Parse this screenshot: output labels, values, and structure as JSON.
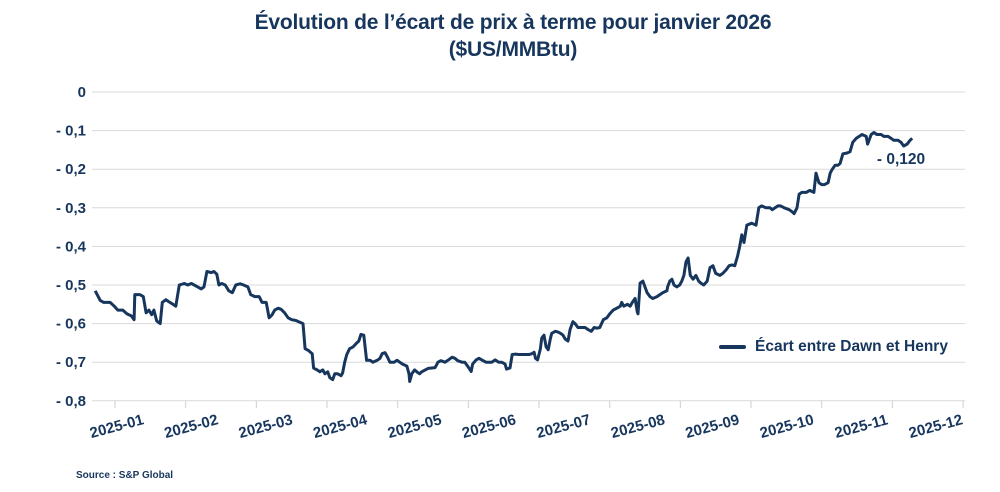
{
  "title": {
    "line1": "Évolution de l’écart de prix à terme pour janvier 2026",
    "line2": "($US/MMBtu)"
  },
  "legend": {
    "label": "Écart entre Dawn et Henry"
  },
  "annotation": {
    "label": "- 0,120"
  },
  "source": {
    "label": "Source : S&P Global"
  },
  "colors": {
    "navy": "#17365d",
    "grid": "#d9d9d9",
    "tick": "#cfcfcf",
    "background": "#ffffff"
  },
  "chart_data": {
    "type": "line",
    "title": "Évolution de l'écart de prix à terme pour janvier 2026 ($US/MMBtu)",
    "xlabel": "",
    "ylabel": "",
    "ylim": [
      -0.8,
      0
    ],
    "grid": "horizontal",
    "legend_position": "right-middle",
    "y_ticks": [
      0,
      -0.1,
      -0.2,
      -0.3,
      -0.4,
      -0.5,
      -0.6,
      -0.7,
      -0.8
    ],
    "y_tick_labels": [
      "0",
      "- 0,1",
      "- 0,2",
      "- 0,3",
      "- 0,4",
      "- 0,5",
      "- 0,6",
      "- 0,7",
      "- 0,8"
    ],
    "x_tick_labels": [
      "2025-01",
      "2025-02",
      "2025-03",
      "2025-04",
      "2025-05",
      "2025-06",
      "2025-07",
      "2025-08",
      "2025-09",
      "2025-10",
      "2025-11",
      "2025-12"
    ],
    "x_unit": "months offset from 2025-01 tick",
    "last_value": -0.12,
    "last_value_label": "- 0,120",
    "series": [
      {
        "name": "Écart entre Dawn et Henry",
        "points": [
          [
            -0.28,
            -0.515
          ],
          [
            -0.21,
            -0.54
          ],
          [
            -0.16,
            -0.545
          ],
          [
            -0.07,
            -0.545
          ],
          [
            -0.01,
            -0.555
          ],
          [
            0.04,
            -0.565
          ],
          [
            0.11,
            -0.565
          ],
          [
            0.17,
            -0.575
          ],
          [
            0.23,
            -0.58
          ],
          [
            0.27,
            -0.59
          ],
          [
            0.28,
            -0.525
          ],
          [
            0.35,
            -0.525
          ],
          [
            0.4,
            -0.53
          ],
          [
            0.44,
            -0.572
          ],
          [
            0.48,
            -0.565
          ],
          [
            0.52,
            -0.577
          ],
          [
            0.55,
            -0.565
          ],
          [
            0.59,
            -0.593
          ],
          [
            0.64,
            -0.6
          ],
          [
            0.67,
            -0.545
          ],
          [
            0.72,
            -0.538
          ],
          [
            0.76,
            -0.543
          ],
          [
            0.82,
            -0.55
          ],
          [
            0.86,
            -0.555
          ],
          [
            0.91,
            -0.5
          ],
          [
            0.98,
            -0.496
          ],
          [
            1.03,
            -0.5
          ],
          [
            1.08,
            -0.496
          ],
          [
            1.12,
            -0.5
          ],
          [
            1.17,
            -0.505
          ],
          [
            1.22,
            -0.51
          ],
          [
            1.26,
            -0.505
          ],
          [
            1.3,
            -0.465
          ],
          [
            1.36,
            -0.468
          ],
          [
            1.4,
            -0.465
          ],
          [
            1.44,
            -0.472
          ],
          [
            1.47,
            -0.5
          ],
          [
            1.51,
            -0.496
          ],
          [
            1.56,
            -0.5
          ],
          [
            1.61,
            -0.515
          ],
          [
            1.66,
            -0.52
          ],
          [
            1.71,
            -0.5
          ],
          [
            1.77,
            -0.497
          ],
          [
            1.82,
            -0.5
          ],
          [
            1.88,
            -0.505
          ],
          [
            1.92,
            -0.525
          ],
          [
            1.98,
            -0.53
          ],
          [
            2.04,
            -0.53
          ],
          [
            2.08,
            -0.545
          ],
          [
            2.14,
            -0.545
          ],
          [
            2.18,
            -0.585
          ],
          [
            2.22,
            -0.578
          ],
          [
            2.26,
            -0.565
          ],
          [
            2.31,
            -0.56
          ],
          [
            2.35,
            -0.563
          ],
          [
            2.4,
            -0.572
          ],
          [
            2.45,
            -0.585
          ],
          [
            2.5,
            -0.59
          ],
          [
            2.56,
            -0.592
          ],
          [
            2.6,
            -0.595
          ],
          [
            2.66,
            -0.6
          ],
          [
            2.69,
            -0.665
          ],
          [
            2.74,
            -0.67
          ],
          [
            2.79,
            -0.678
          ],
          [
            2.81,
            -0.715
          ],
          [
            2.86,
            -0.72
          ],
          [
            2.9,
            -0.725
          ],
          [
            2.94,
            -0.72
          ],
          [
            2.97,
            -0.73
          ],
          [
            3.01,
            -0.725
          ],
          [
            3.04,
            -0.74
          ],
          [
            3.08,
            -0.745
          ],
          [
            3.11,
            -0.73
          ],
          [
            3.15,
            -0.73
          ],
          [
            3.2,
            -0.735
          ],
          [
            3.22,
            -0.728
          ],
          [
            3.25,
            -0.7
          ],
          [
            3.28,
            -0.68
          ],
          [
            3.32,
            -0.665
          ],
          [
            3.37,
            -0.66
          ],
          [
            3.41,
            -0.652
          ],
          [
            3.45,
            -0.645
          ],
          [
            3.48,
            -0.628
          ],
          [
            3.52,
            -0.63
          ],
          [
            3.56,
            -0.695
          ],
          [
            3.61,
            -0.695
          ],
          [
            3.65,
            -0.7
          ],
          [
            3.71,
            -0.695
          ],
          [
            3.75,
            -0.69
          ],
          [
            3.78,
            -0.678
          ],
          [
            3.82,
            -0.675
          ],
          [
            3.85,
            -0.685
          ],
          [
            3.89,
            -0.7
          ],
          [
            3.95,
            -0.7
          ],
          [
            3.99,
            -0.695
          ],
          [
            4.03,
            -0.7
          ],
          [
            4.07,
            -0.705
          ],
          [
            4.13,
            -0.71
          ],
          [
            4.16,
            -0.73
          ],
          [
            4.17,
            -0.75
          ],
          [
            4.2,
            -0.73
          ],
          [
            4.24,
            -0.72
          ],
          [
            4.27,
            -0.725
          ],
          [
            4.31,
            -0.73
          ],
          [
            4.34,
            -0.725
          ],
          [
            4.39,
            -0.72
          ],
          [
            4.43,
            -0.716
          ],
          [
            4.48,
            -0.715
          ],
          [
            4.53,
            -0.714
          ],
          [
            4.57,
            -0.7
          ],
          [
            4.61,
            -0.696
          ],
          [
            4.67,
            -0.7
          ],
          [
            4.71,
            -0.695
          ],
          [
            4.77,
            -0.687
          ],
          [
            4.81,
            -0.69
          ],
          [
            4.85,
            -0.696
          ],
          [
            4.91,
            -0.7
          ],
          [
            4.95,
            -0.7
          ],
          [
            4.99,
            -0.71
          ],
          [
            5.04,
            -0.724
          ],
          [
            5.06,
            -0.705
          ],
          [
            5.11,
            -0.694
          ],
          [
            5.15,
            -0.69
          ],
          [
            5.19,
            -0.694
          ],
          [
            5.25,
            -0.7
          ],
          [
            5.29,
            -0.7
          ],
          [
            5.33,
            -0.7
          ],
          [
            5.38,
            -0.694
          ],
          [
            5.43,
            -0.7
          ],
          [
            5.47,
            -0.7
          ],
          [
            5.52,
            -0.705
          ],
          [
            5.54,
            -0.718
          ],
          [
            5.59,
            -0.715
          ],
          [
            5.62,
            -0.68
          ],
          [
            5.67,
            -0.679
          ],
          [
            5.71,
            -0.68
          ],
          [
            5.77,
            -0.68
          ],
          [
            5.81,
            -0.68
          ],
          [
            5.86,
            -0.68
          ],
          [
            5.9,
            -0.678
          ],
          [
            5.93,
            -0.674
          ],
          [
            5.95,
            -0.69
          ],
          [
            5.98,
            -0.694
          ],
          [
            6.02,
            -0.665
          ],
          [
            6.03,
            -0.65
          ],
          [
            6.04,
            -0.637
          ],
          [
            6.07,
            -0.63
          ],
          [
            6.1,
            -0.66
          ],
          [
            6.13,
            -0.668
          ],
          [
            6.16,
            -0.64
          ],
          [
            6.18,
            -0.625
          ],
          [
            6.23,
            -0.62
          ],
          [
            6.27,
            -0.622
          ],
          [
            6.31,
            -0.626
          ],
          [
            6.34,
            -0.63
          ],
          [
            6.37,
            -0.64
          ],
          [
            6.41,
            -0.645
          ],
          [
            6.44,
            -0.615
          ],
          [
            6.48,
            -0.595
          ],
          [
            6.51,
            -0.6
          ],
          [
            6.55,
            -0.61
          ],
          [
            6.61,
            -0.61
          ],
          [
            6.65,
            -0.61
          ],
          [
            6.69,
            -0.615
          ],
          [
            6.74,
            -0.62
          ],
          [
            6.78,
            -0.61
          ],
          [
            6.82,
            -0.612
          ],
          [
            6.86,
            -0.61
          ],
          [
            6.91,
            -0.59
          ],
          [
            6.96,
            -0.585
          ],
          [
            7.0,
            -0.575
          ],
          [
            7.05,
            -0.565
          ],
          [
            7.1,
            -0.56
          ],
          [
            7.15,
            -0.555
          ],
          [
            7.17,
            -0.545
          ],
          [
            7.2,
            -0.555
          ],
          [
            7.25,
            -0.55
          ],
          [
            7.29,
            -0.555
          ],
          [
            7.32,
            -0.545
          ],
          [
            7.36,
            -0.535
          ],
          [
            7.39,
            -0.57
          ],
          [
            7.4,
            -0.575
          ],
          [
            7.43,
            -0.495
          ],
          [
            7.47,
            -0.49
          ],
          [
            7.53,
            -0.52
          ],
          [
            7.57,
            -0.53
          ],
          [
            7.61,
            -0.535
          ],
          [
            7.67,
            -0.53
          ],
          [
            7.71,
            -0.525
          ],
          [
            7.75,
            -0.52
          ],
          [
            7.81,
            -0.515
          ],
          [
            7.82,
            -0.505
          ],
          [
            7.85,
            -0.49
          ],
          [
            7.88,
            -0.485
          ],
          [
            7.91,
            -0.5
          ],
          [
            7.95,
            -0.505
          ],
          [
            7.99,
            -0.5
          ],
          [
            8.02,
            -0.49
          ],
          [
            8.05,
            -0.475
          ],
          [
            8.08,
            -0.44
          ],
          [
            8.11,
            -0.43
          ],
          [
            8.14,
            -0.475
          ],
          [
            8.18,
            -0.485
          ],
          [
            8.22,
            -0.475
          ],
          [
            8.26,
            -0.49
          ],
          [
            8.29,
            -0.495
          ],
          [
            8.33,
            -0.5
          ],
          [
            8.38,
            -0.49
          ],
          [
            8.42,
            -0.455
          ],
          [
            8.46,
            -0.45
          ],
          [
            8.5,
            -0.47
          ],
          [
            8.56,
            -0.475
          ],
          [
            8.6,
            -0.47
          ],
          [
            8.65,
            -0.46
          ],
          [
            8.69,
            -0.45
          ],
          [
            8.73,
            -0.448
          ],
          [
            8.77,
            -0.45
          ],
          [
            8.81,
            -0.425
          ],
          [
            8.84,
            -0.4
          ],
          [
            8.87,
            -0.37
          ],
          [
            8.9,
            -0.39
          ],
          [
            8.94,
            -0.345
          ],
          [
            9.01,
            -0.34
          ],
          [
            9.07,
            -0.345
          ],
          [
            9.11,
            -0.3
          ],
          [
            9.15,
            -0.295
          ],
          [
            9.21,
            -0.3
          ],
          [
            9.27,
            -0.3
          ],
          [
            9.3,
            -0.305
          ],
          [
            9.34,
            -0.3
          ],
          [
            9.38,
            -0.295
          ],
          [
            9.42,
            -0.295
          ],
          [
            9.47,
            -0.3
          ],
          [
            9.54,
            -0.305
          ],
          [
            9.58,
            -0.31
          ],
          [
            9.61,
            -0.315
          ],
          [
            9.65,
            -0.3
          ],
          [
            9.68,
            -0.265
          ],
          [
            9.72,
            -0.26
          ],
          [
            9.78,
            -0.26
          ],
          [
            9.83,
            -0.255
          ],
          [
            9.89,
            -0.26
          ],
          [
            9.92,
            -0.21
          ],
          [
            9.96,
            -0.235
          ],
          [
            10.0,
            -0.24
          ],
          [
            10.04,
            -0.24
          ],
          [
            10.09,
            -0.235
          ],
          [
            10.12,
            -0.21
          ],
          [
            10.15,
            -0.2
          ],
          [
            10.19,
            -0.19
          ],
          [
            10.23,
            -0.19
          ],
          [
            10.26,
            -0.185
          ],
          [
            10.3,
            -0.16
          ],
          [
            10.36,
            -0.158
          ],
          [
            10.4,
            -0.155
          ],
          [
            10.44,
            -0.13
          ],
          [
            10.49,
            -0.12
          ],
          [
            10.53,
            -0.115
          ],
          [
            10.57,
            -0.11
          ],
          [
            10.63,
            -0.115
          ],
          [
            10.65,
            -0.135
          ],
          [
            10.7,
            -0.11
          ],
          [
            10.74,
            -0.105
          ],
          [
            10.78,
            -0.11
          ],
          [
            10.84,
            -0.11
          ],
          [
            10.88,
            -0.115
          ],
          [
            10.94,
            -0.115
          ],
          [
            10.98,
            -0.12
          ],
          [
            11.02,
            -0.125
          ],
          [
            11.08,
            -0.125
          ],
          [
            11.12,
            -0.13
          ],
          [
            11.16,
            -0.14
          ],
          [
            11.21,
            -0.135
          ],
          [
            11.25,
            -0.125
          ],
          [
            11.28,
            -0.12
          ]
        ]
      }
    ]
  }
}
